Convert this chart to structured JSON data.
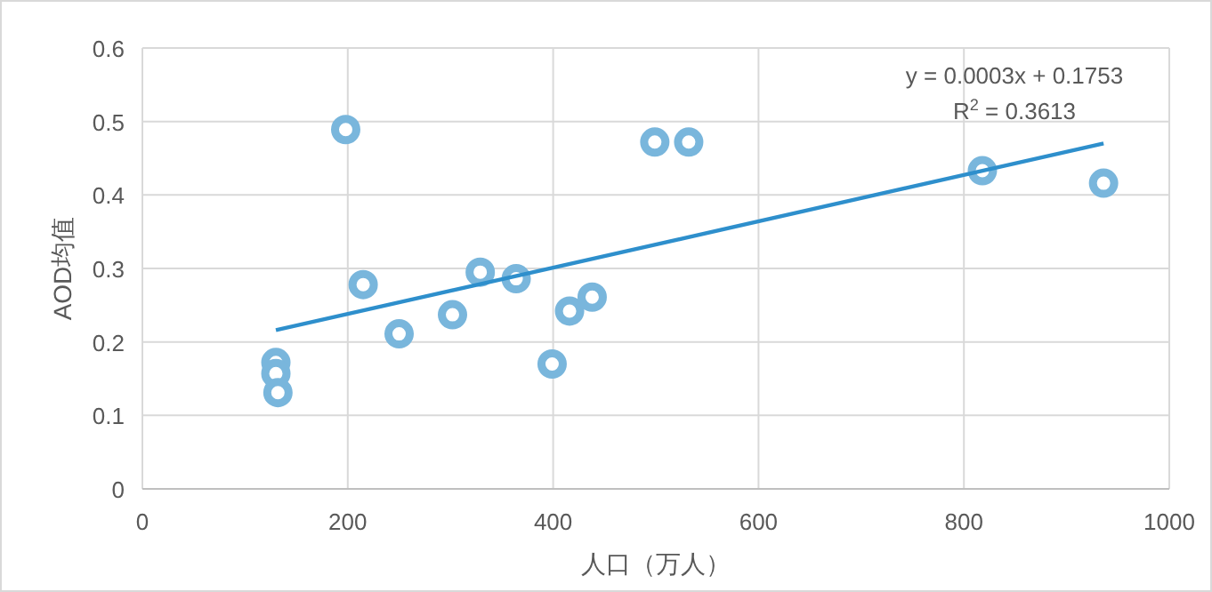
{
  "chart_data": {
    "type": "scatter",
    "xlabel": "人口（万人）",
    "ylabel": "AOD均值",
    "xlim": [
      0,
      1000
    ],
    "ylim": [
      0,
      0.6
    ],
    "xticks": [
      0,
      200,
      400,
      600,
      800,
      1000
    ],
    "yticks": [
      0,
      0.1,
      0.2,
      0.3,
      0.4,
      0.5,
      0.6
    ],
    "grid": true,
    "annotations": [
      "y = 0.0003x + 0.1753",
      "R$^{2}$ = 0.3613"
    ],
    "series": [
      {
        "marker": "circle",
        "color": "#79b6dc",
        "x": [
          130,
          130,
          132,
          198,
          215,
          250,
          302,
          329,
          364,
          399,
          416,
          438,
          499,
          532,
          818,
          936
        ],
        "values": [
          0.172,
          0.157,
          0.131,
          0.489,
          0.278,
          0.211,
          0.237,
          0.295,
          0.286,
          0.17,
          0.242,
          0.261,
          0.472,
          0.472,
          0.433,
          0.416
        ]
      },
      {
        "type": "line",
        "marker": "none",
        "color": "#2e8fcc",
        "x": [
          130,
          936
        ],
        "values": [
          0.216,
          0.47
        ]
      }
    ]
  }
}
